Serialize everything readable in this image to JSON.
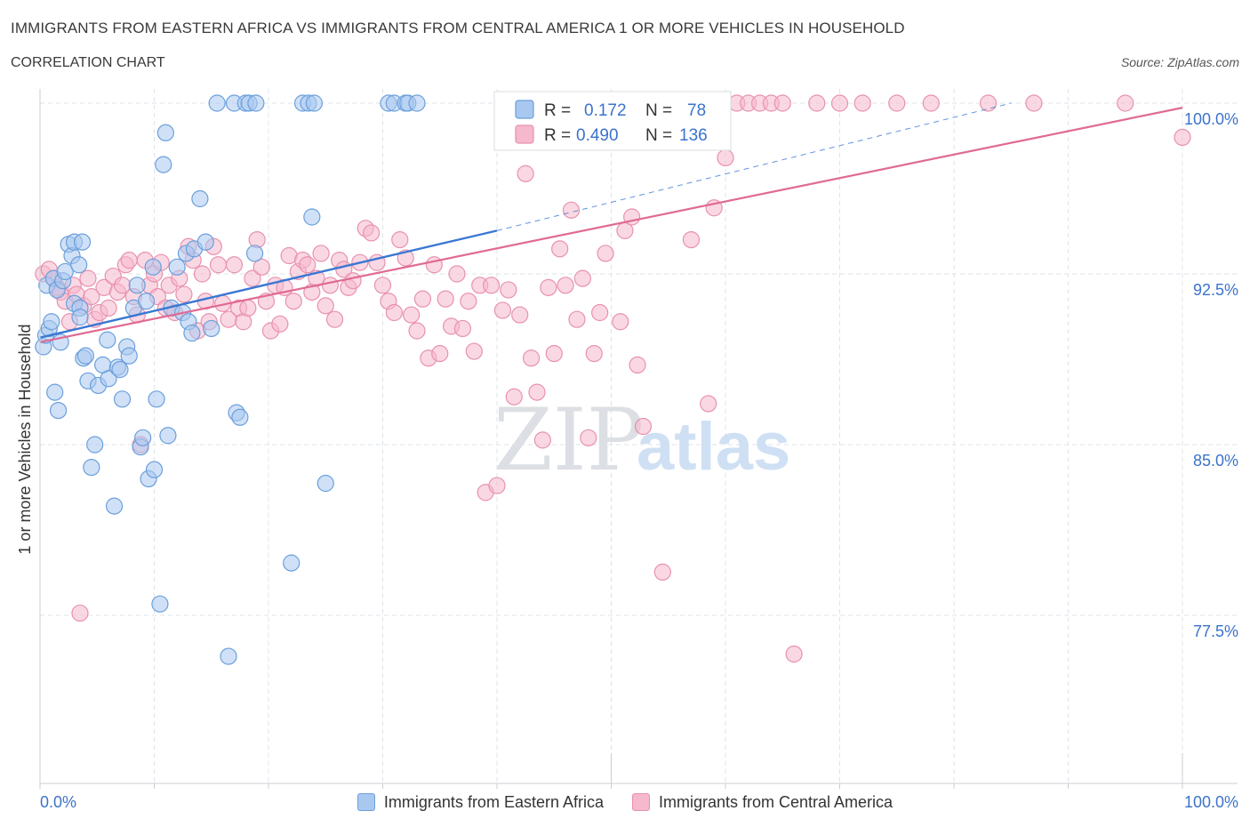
{
  "header": {
    "title": "IMMIGRANTS FROM EASTERN AFRICA VS IMMIGRANTS FROM CENTRAL AMERICA 1 OR MORE VEHICLES IN HOUSEHOLD",
    "subtitle": "CORRELATION CHART",
    "source": "Source: ZipAtlas.com"
  },
  "watermark": {
    "zip": "ZIP",
    "atlas": "atlas"
  },
  "colors": {
    "blue_fill": "#a9c8f0",
    "blue_stroke": "#6a9fdc",
    "blue_line": "#3a78d4",
    "pink_fill": "#f5b8cc",
    "pink_stroke": "#e891ae",
    "pink_line": "#e06a93",
    "accent_text": "#3b73cc",
    "grid": "#dde3ea"
  },
  "stats": {
    "blue": {
      "r_label": "R =",
      "r_value": "0.172",
      "n_label": "N =",
      "n_value": "78"
    },
    "pink": {
      "r_label": "R =",
      "r_value": "0.490",
      "n_label": "N =",
      "n_value": "136"
    }
  },
  "chart_data": {
    "type": "scatter",
    "title": "IMMIGRANTS FROM EASTERN AFRICA VS IMMIGRANTS FROM CENTRAL AMERICA 1 OR MORE VEHICLES IN HOUSEHOLD",
    "subtitle": "CORRELATION CHART",
    "xlabel": "",
    "ylabel": "1 or more Vehicles in Household",
    "xlim": [
      0,
      100
    ],
    "ylim": [
      70,
      100.7
    ],
    "x_tick_labels": [
      "0.0%",
      "100.0%"
    ],
    "y_ticks": [
      100.0,
      92.5,
      85.0,
      77.5
    ],
    "y_tick_labels": [
      "100.0%",
      "92.5%",
      "85.0%",
      "77.5%"
    ],
    "grid": true,
    "legend_position": "bottom",
    "series": [
      {
        "name": "Immigrants from Eastern Africa",
        "color": "#a9c8f0",
        "r": 0.172,
        "n": 78,
        "trend": {
          "x": [
            0,
            40
          ],
          "y": [
            89.7,
            94.4
          ]
        },
        "trend_dashed": {
          "x": [
            40,
            85
          ],
          "y": [
            94.4,
            100.0
          ]
        },
        "points": [
          [
            0.3,
            89.3
          ],
          [
            0.5,
            89.8
          ],
          [
            0.6,
            92.0
          ],
          [
            0.8,
            90.1
          ],
          [
            1.0,
            90.4
          ],
          [
            1.2,
            92.3
          ],
          [
            1.5,
            91.8
          ],
          [
            1.3,
            87.3
          ],
          [
            1.6,
            86.5
          ],
          [
            1.8,
            89.5
          ],
          [
            2.0,
            92.2
          ],
          [
            2.2,
            92.6
          ],
          [
            2.5,
            93.8
          ],
          [
            2.8,
            93.3
          ],
          [
            3.0,
            93.9
          ],
          [
            3.0,
            91.2
          ],
          [
            3.4,
            92.9
          ],
          [
            3.5,
            91.0
          ],
          [
            3.7,
            93.9
          ],
          [
            3.5,
            90.6
          ],
          [
            3.8,
            88.8
          ],
          [
            4.0,
            88.9
          ],
          [
            4.2,
            87.8
          ],
          [
            4.5,
            84.0
          ],
          [
            4.8,
            85.0
          ],
          [
            5.1,
            87.6
          ],
          [
            5.5,
            88.5
          ],
          [
            5.9,
            89.6
          ],
          [
            6.0,
            87.9
          ],
          [
            6.5,
            82.3
          ],
          [
            6.8,
            88.4
          ],
          [
            7.0,
            88.3
          ],
          [
            7.2,
            87.0
          ],
          [
            7.6,
            89.3
          ],
          [
            7.8,
            88.9
          ],
          [
            8.2,
            91.0
          ],
          [
            8.5,
            92.0
          ],
          [
            8.8,
            84.9
          ],
          [
            9.0,
            85.3
          ],
          [
            9.3,
            91.3
          ],
          [
            9.5,
            83.5
          ],
          [
            9.9,
            92.8
          ],
          [
            10.0,
            83.9
          ],
          [
            10.2,
            87.0
          ],
          [
            10.5,
            78.0
          ],
          [
            10.8,
            97.3
          ],
          [
            11.0,
            98.7
          ],
          [
            11.5,
            91.0
          ],
          [
            11.2,
            85.4
          ],
          [
            12.0,
            92.8
          ],
          [
            12.5,
            90.8
          ],
          [
            12.8,
            93.4
          ],
          [
            13.0,
            90.4
          ],
          [
            13.3,
            89.9
          ],
          [
            13.5,
            93.6
          ],
          [
            14.0,
            95.8
          ],
          [
            14.5,
            93.9
          ],
          [
            15.0,
            90.1
          ],
          [
            15.5,
            100.0
          ],
          [
            16.5,
            75.7
          ],
          [
            17.0,
            100.0
          ],
          [
            17.2,
            86.4
          ],
          [
            17.5,
            86.2
          ],
          [
            18.0,
            100.0
          ],
          [
            18.3,
            100.0
          ],
          [
            18.8,
            93.4
          ],
          [
            18.9,
            100.0
          ],
          [
            22.0,
            79.8
          ],
          [
            23.0,
            100.0
          ],
          [
            23.5,
            100.0
          ],
          [
            23.8,
            95.0
          ],
          [
            24.0,
            100.0
          ],
          [
            25.0,
            83.3
          ],
          [
            30.5,
            100.0
          ],
          [
            31.0,
            100.0
          ],
          [
            32.0,
            100.0
          ],
          [
            32.2,
            100.0
          ],
          [
            33.0,
            100.0
          ]
        ]
      },
      {
        "name": "Immigrants from Central America",
        "color": "#f5b8cc",
        "r": 0.49,
        "n": 136,
        "trend": {
          "x": [
            0,
            100
          ],
          "y": [
            89.5,
            99.8
          ]
        },
        "points": [
          [
            0.3,
            92.5
          ],
          [
            0.8,
            92.7
          ],
          [
            1.2,
            92.3
          ],
          [
            1.5,
            91.9
          ],
          [
            1.8,
            91.7
          ],
          [
            2.2,
            91.3
          ],
          [
            2.6,
            90.4
          ],
          [
            2.9,
            92.0
          ],
          [
            3.2,
            91.6
          ],
          [
            3.5,
            77.6
          ],
          [
            3.8,
            91.1
          ],
          [
            4.2,
            92.3
          ],
          [
            4.5,
            91.5
          ],
          [
            4.8,
            90.5
          ],
          [
            5.2,
            90.8
          ],
          [
            5.6,
            91.9
          ],
          [
            6.0,
            91.0
          ],
          [
            6.4,
            92.4
          ],
          [
            6.8,
            91.7
          ],
          [
            7.2,
            92.0
          ],
          [
            7.5,
            92.9
          ],
          [
            7.8,
            93.1
          ],
          [
            8.2,
            91.5
          ],
          [
            8.5,
            90.7
          ],
          [
            8.8,
            85.0
          ],
          [
            9.2,
            93.1
          ],
          [
            9.6,
            92.0
          ],
          [
            10.0,
            92.5
          ],
          [
            10.3,
            91.5
          ],
          [
            10.6,
            93.0
          ],
          [
            11.0,
            91.0
          ],
          [
            11.3,
            92.0
          ],
          [
            11.8,
            90.8
          ],
          [
            12.2,
            92.3
          ],
          [
            12.6,
            91.6
          ],
          [
            13.0,
            93.7
          ],
          [
            13.4,
            93.1
          ],
          [
            13.8,
            90.0
          ],
          [
            14.2,
            92.5
          ],
          [
            14.5,
            91.3
          ],
          [
            14.8,
            90.4
          ],
          [
            15.2,
            93.7
          ],
          [
            15.6,
            92.9
          ],
          [
            16.0,
            91.2
          ],
          [
            16.5,
            90.5
          ],
          [
            17.0,
            92.9
          ],
          [
            17.4,
            91.0
          ],
          [
            17.8,
            90.4
          ],
          [
            18.2,
            91.0
          ],
          [
            18.6,
            92.3
          ],
          [
            19.0,
            94.0
          ],
          [
            19.4,
            92.8
          ],
          [
            19.8,
            91.3
          ],
          [
            20.2,
            90.0
          ],
          [
            20.6,
            92.0
          ],
          [
            21.0,
            90.3
          ],
          [
            21.4,
            91.9
          ],
          [
            21.8,
            93.3
          ],
          [
            22.2,
            91.3
          ],
          [
            22.6,
            92.6
          ],
          [
            23.0,
            93.1
          ],
          [
            23.4,
            92.9
          ],
          [
            23.8,
            91.7
          ],
          [
            24.2,
            92.3
          ],
          [
            24.6,
            93.4
          ],
          [
            25.0,
            91.1
          ],
          [
            25.4,
            92.0
          ],
          [
            25.8,
            90.5
          ],
          [
            26.2,
            93.1
          ],
          [
            26.6,
            92.7
          ],
          [
            27.0,
            91.9
          ],
          [
            27.4,
            92.2
          ],
          [
            28.0,
            93.0
          ],
          [
            28.5,
            94.5
          ],
          [
            29.0,
            94.3
          ],
          [
            29.5,
            93.0
          ],
          [
            30.0,
            92.0
          ],
          [
            30.5,
            91.3
          ],
          [
            31.0,
            90.8
          ],
          [
            31.5,
            94.0
          ],
          [
            32.0,
            93.2
          ],
          [
            32.5,
            90.7
          ],
          [
            33.0,
            90.0
          ],
          [
            33.5,
            91.4
          ],
          [
            34.0,
            88.8
          ],
          [
            34.5,
            92.9
          ],
          [
            35.0,
            89.0
          ],
          [
            35.5,
            91.4
          ],
          [
            36.0,
            90.2
          ],
          [
            36.5,
            92.5
          ],
          [
            37.0,
            90.1
          ],
          [
            37.5,
            91.3
          ],
          [
            38.0,
            89.1
          ],
          [
            38.5,
            92.0
          ],
          [
            39.0,
            82.9
          ],
          [
            39.5,
            92.0
          ],
          [
            40.0,
            83.2
          ],
          [
            40.5,
            90.9
          ],
          [
            41.0,
            91.8
          ],
          [
            41.5,
            87.1
          ],
          [
            42.0,
            90.7
          ],
          [
            42.5,
            96.9
          ],
          [
            43.0,
            88.8
          ],
          [
            43.5,
            87.3
          ],
          [
            44.0,
            85.2
          ],
          [
            44.5,
            91.9
          ],
          [
            45.0,
            89.0
          ],
          [
            45.5,
            93.6
          ],
          [
            46.0,
            92.0
          ],
          [
            46.5,
            95.3
          ],
          [
            47.0,
            90.5
          ],
          [
            47.5,
            92.3
          ],
          [
            48.0,
            85.3
          ],
          [
            48.5,
            89.0
          ],
          [
            49.0,
            90.8
          ],
          [
            49.5,
            93.4
          ],
          [
            50.0,
            100.0
          ],
          [
            50.8,
            90.4
          ],
          [
            51.2,
            94.4
          ],
          [
            51.8,
            95.0
          ],
          [
            52.3,
            88.5
          ],
          [
            52.8,
            85.8
          ],
          [
            53.5,
            98.5
          ],
          [
            54.5,
            79.4
          ],
          [
            55.0,
            100.0
          ],
          [
            57.0,
            94.0
          ],
          [
            58.0,
            100.0
          ],
          [
            58.5,
            86.8
          ],
          [
            59.0,
            95.4
          ],
          [
            60.0,
            97.6
          ],
          [
            61.0,
            100.0
          ],
          [
            62.0,
            100.0
          ],
          [
            63.0,
            100.0
          ],
          [
            64.0,
            100.0
          ],
          [
            65.0,
            100.0
          ],
          [
            66.0,
            75.8
          ],
          [
            68.0,
            100.0
          ],
          [
            70.0,
            100.0
          ],
          [
            72.0,
            100.0
          ],
          [
            75.0,
            100.0
          ],
          [
            78.0,
            100.0
          ],
          [
            83.0,
            100.0
          ],
          [
            87.0,
            100.0
          ],
          [
            95.0,
            100.0
          ],
          [
            100.0,
            98.5
          ]
        ]
      }
    ]
  }
}
